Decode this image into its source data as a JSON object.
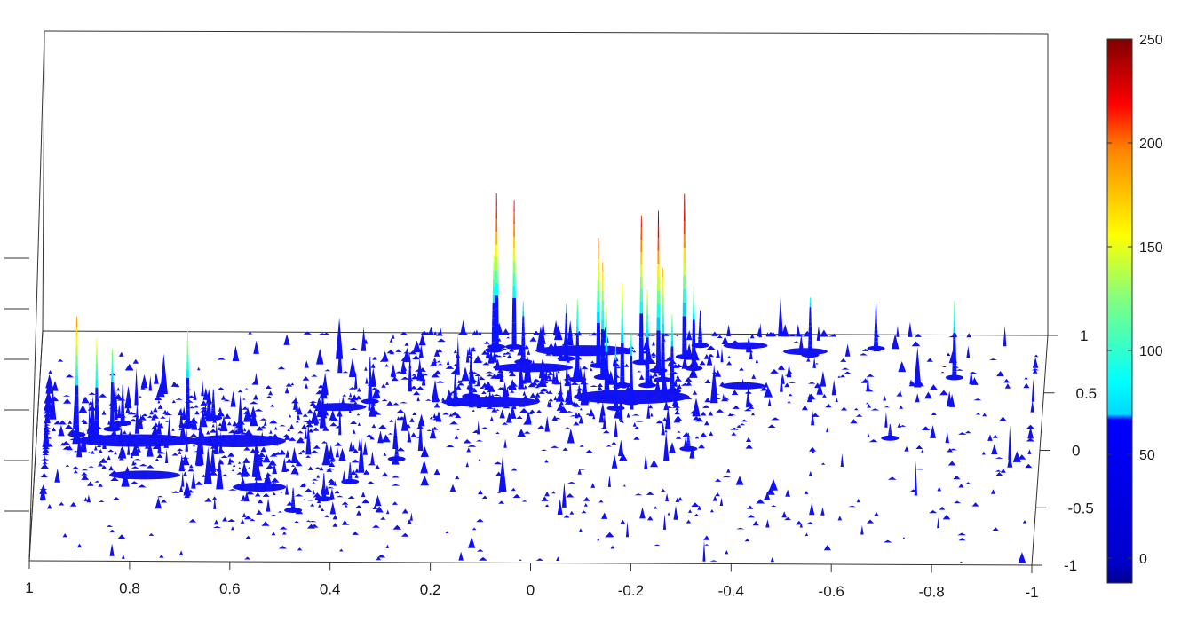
{
  "chart_data": {
    "type": "surface",
    "title": "",
    "xlabel": "",
    "ylabel": "",
    "zlabel": "",
    "colormap": "jet",
    "grid": false,
    "xlim": [
      -1,
      1
    ],
    "ylim": [
      -1,
      1
    ],
    "zlim": [
      0,
      300
    ],
    "x_ticks": [
      "1",
      "0.8",
      "0.6",
      "0.4",
      "0.2",
      "0",
      "-0.2",
      "-0.4",
      "-0.6",
      "-0.8",
      "-1"
    ],
    "x_tick_values": [
      1,
      0.8,
      0.6,
      0.4,
      0.2,
      0,
      -0.2,
      -0.4,
      -0.6,
      -0.8,
      -1
    ],
    "y_ticks": [
      "1",
      "0.5",
      "0",
      "-0.5",
      "-1"
    ],
    "y_tick_values": [
      1,
      0.5,
      0,
      -0.5,
      -1
    ],
    "z_tick_count": 6,
    "colorbar": {
      "range": [
        -12,
        250
      ],
      "ticks": [
        "250",
        "200",
        "150",
        "100",
        "50",
        "0"
      ],
      "tick_values": [
        250,
        200,
        150,
        100,
        50,
        0
      ]
    },
    "peaks": [
      {
        "x": 0.095,
        "y": 0.88,
        "z": 240
      },
      {
        "x": 0.06,
        "y": 0.88,
        "z": 230
      },
      {
        "x": 0.1,
        "y": 0.85,
        "z": 150
      },
      {
        "x": -0.11,
        "y": 0.72,
        "z": 200
      },
      {
        "x": -0.195,
        "y": 0.75,
        "z": 230
      },
      {
        "x": -0.23,
        "y": 0.68,
        "z": 250
      },
      {
        "x": -0.28,
        "y": 0.8,
        "z": 255
      },
      {
        "x": -0.16,
        "y": 0.55,
        "z": 160
      },
      {
        "x": -0.21,
        "y": 0.55,
        "z": 150
      },
      {
        "x": -0.13,
        "y": 0.45,
        "z": 140
      },
      {
        "x": -0.26,
        "y": 0.5,
        "z": 120
      },
      {
        "x": -0.18,
        "y": 0.4,
        "z": 110
      },
      {
        "x": -0.07,
        "y": 0.6,
        "z": 125
      },
      {
        "x": -0.3,
        "y": 0.7,
        "z": 130
      },
      {
        "x": 0.04,
        "y": 0.75,
        "z": 95
      },
      {
        "x": -0.045,
        "y": 0.78,
        "z": 85
      },
      {
        "x": -0.12,
        "y": 0.62,
        "z": 180
      },
      {
        "x": -0.24,
        "y": 0.6,
        "z": 175
      },
      {
        "x": -0.15,
        "y": 0.35,
        "z": 100
      },
      {
        "x": 0.14,
        "y": 0.45,
        "z": 75
      },
      {
        "x": 0.92,
        "y": 0.1,
        "z": 185
      },
      {
        "x": 0.88,
        "y": 0.08,
        "z": 155
      },
      {
        "x": 0.85,
        "y": 0.15,
        "z": 125
      },
      {
        "x": 0.7,
        "y": 0.18,
        "z": 150
      },
      {
        "x": 0.34,
        "y": 0.4,
        "z": 70
      },
      {
        "x": -0.53,
        "y": 0.82,
        "z": 90
      },
      {
        "x": -0.66,
        "y": 0.88,
        "z": 70
      },
      {
        "x": -0.82,
        "y": 0.63,
        "z": 120
      },
      {
        "x": -0.31,
        "y": 0.9,
        "z": 55
      },
      {
        "x": 0.83,
        "y": 0.2,
        "z": 60
      },
      {
        "x": 0.17,
        "y": 0.38,
        "z": 55
      },
      {
        "x": 0.65,
        "y": 0.25,
        "z": 45
      },
      {
        "x": 0.42,
        "y": -0.45,
        "z": 40
      },
      {
        "x": 0.37,
        "y": -0.3,
        "z": 30
      },
      {
        "x": 0.48,
        "y": -0.55,
        "z": 35
      },
      {
        "x": 0.28,
        "y": -0.1,
        "z": 28
      },
      {
        "x": -0.3,
        "y": 0.0,
        "z": 25
      },
      {
        "x": -0.7,
        "y": 0.1,
        "z": 22
      }
    ]
  }
}
